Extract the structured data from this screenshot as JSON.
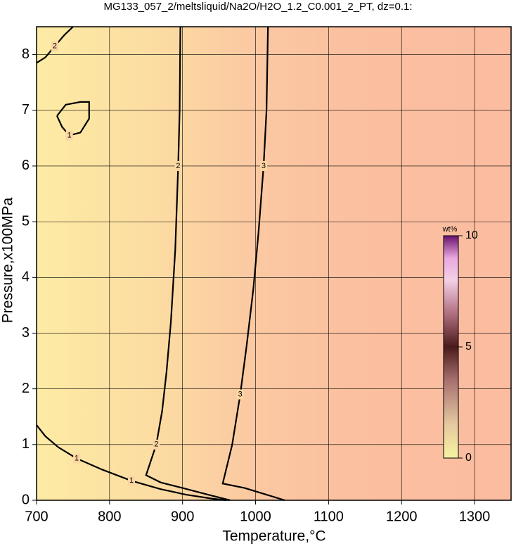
{
  "chart_data": {
    "type": "contour",
    "title": "MG133_057_2/meltsliquid/Na2O/H2O_1.2_C0.001_2_PT, dz=0.1:",
    "xlabel": "Temperature,°C",
    "ylabel": "Pressure,x100MPa",
    "xlim": [
      700,
      1350
    ],
    "ylim": [
      0,
      8.5
    ],
    "xticks": [
      700,
      800,
      900,
      1000,
      1100,
      1200,
      1300
    ],
    "yticks": [
      0,
      1,
      2,
      3,
      4,
      5,
      6,
      7,
      8
    ],
    "grid": true,
    "contours": [
      {
        "level": 2,
        "x": [
          897,
          896,
          894,
          890,
          884,
          878,
          872,
          864,
          850,
          870,
          900,
          935,
          965
        ],
        "y": [
          8.5,
          7,
          6,
          4.5,
          3.2,
          2.3,
          1.6,
          1.0,
          0.45,
          0.32,
          0.22,
          0.1,
          0
        ]
      },
      {
        "level": 3,
        "x": [
          1017,
          1015,
          1011,
          1004,
          997,
          988,
          979,
          968,
          955,
          985,
          1015,
          1040
        ],
        "y": [
          8.5,
          7,
          6,
          4.8,
          3.8,
          2.8,
          1.9,
          1.0,
          0.3,
          0.22,
          0.1,
          0
        ]
      },
      {
        "level": 1,
        "x": [
          700,
          712,
          730,
          755,
          790,
          830,
          870,
          905,
          940,
          960
        ],
        "y": [
          1.35,
          1.15,
          0.95,
          0.75,
          0.55,
          0.35,
          0.2,
          0.1,
          0.03,
          0
        ]
      },
      {
        "level": 2,
        "x": [
          700,
          712,
          725,
          738,
          750
        ],
        "y": [
          7.85,
          7.95,
          8.15,
          8.35,
          8.5
        ]
      },
      {
        "level": 1,
        "x": [
          728,
          740,
          760,
          772,
          772,
          760,
          745,
          735,
          728
        ],
        "y": [
          6.9,
          7.1,
          7.15,
          7.15,
          6.85,
          6.6,
          6.55,
          6.7,
          6.9
        ]
      }
    ],
    "colorbar": {
      "label": "wt%",
      "lim": [
        0,
        10
      ],
      "ticks": [
        0,
        5,
        10
      ]
    }
  }
}
